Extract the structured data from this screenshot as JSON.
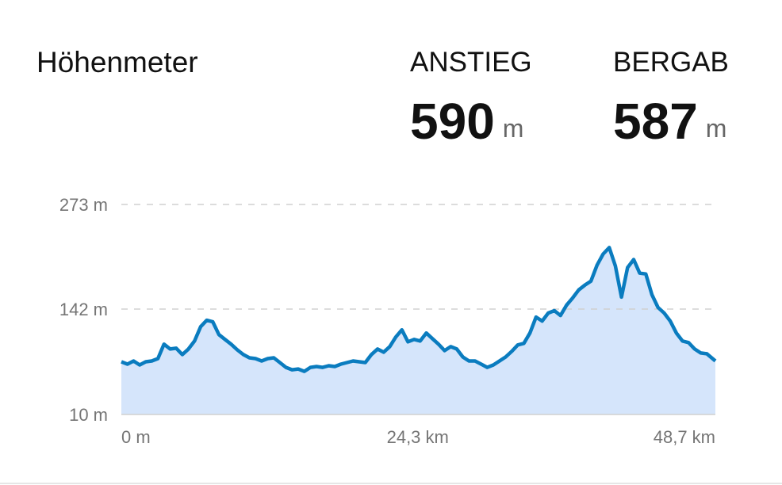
{
  "header": {
    "title": "Höhenmeter",
    "stats": [
      {
        "label": "ANSTIEG",
        "value": 590,
        "unit": "m"
      },
      {
        "label": "BERGAB",
        "value": 587,
        "unit": "m"
      }
    ]
  },
  "chart_data": {
    "type": "area",
    "color": "#0a7cbf",
    "fill": "#d5e5fb",
    "grid": true,
    "x": [
      0,
      0.5,
      1,
      1.5,
      2,
      2.5,
      3,
      3.5,
      4,
      4.5,
      5,
      5.5,
      6,
      6.5,
      7,
      7.5,
      8,
      8.5,
      9,
      9.5,
      10,
      10.5,
      11,
      11.5,
      12,
      12.5,
      13,
      13.5,
      14,
      14.5,
      15,
      15.5,
      16,
      16.5,
      17,
      17.5,
      18,
      18.5,
      19,
      19.5,
      20,
      20.5,
      21,
      21.5,
      22,
      22.5,
      23,
      23.5,
      24,
      24.5,
      25,
      25.5,
      26,
      26.5,
      27,
      27.5,
      28,
      28.5,
      29,
      29.5,
      30,
      30.5,
      31,
      31.5,
      32,
      32.5,
      33,
      33.5,
      34,
      34.5,
      35,
      35.5,
      36,
      36.5,
      37,
      37.5,
      38,
      38.5,
      39,
      39.5,
      40,
      40.5,
      41,
      41.5,
      42,
      42.5,
      43,
      43.5,
      44,
      44.5,
      45,
      45.5,
      46,
      46.5,
      47,
      47.5,
      48,
      48.7
    ],
    "values": [
      76,
      73,
      77,
      72,
      76,
      77,
      80,
      98,
      92,
      93,
      85,
      92,
      102,
      120,
      128,
      126,
      110,
      104,
      98,
      91,
      85,
      81,
      80,
      77,
      80,
      81,
      75,
      69,
      66,
      67,
      64,
      69,
      70,
      69,
      71,
      70,
      73,
      75,
      77,
      76,
      75,
      85,
      92,
      88,
      95,
      107,
      116,
      101,
      104,
      102,
      112,
      105,
      98,
      90,
      95,
      92,
      82,
      77,
      77,
      73,
      69,
      72,
      77,
      82,
      89,
      97,
      99,
      112,
      132,
      127,
      137,
      140,
      134,
      147,
      156,
      166,
      172,
      177,
      197,
      211,
      219,
      196,
      157,
      194,
      204,
      187,
      186,
      160,
      144,
      137,
      127,
      112,
      102,
      100,
      92,
      87,
      86,
      77
    ],
    "xlim": [
      0,
      48.7
    ],
    "ylim": [
      10,
      273
    ],
    "xticks": [
      {
        "value": 0,
        "label": "0 m"
      },
      {
        "value": 24.3,
        "label": "24,3 km"
      },
      {
        "value": 48.7,
        "label": "48,7 km"
      }
    ],
    "yticks": [
      {
        "value": 10,
        "label": "10 m"
      },
      {
        "value": 142,
        "label": "142 m"
      },
      {
        "value": 273,
        "label": "273 m"
      }
    ]
  }
}
